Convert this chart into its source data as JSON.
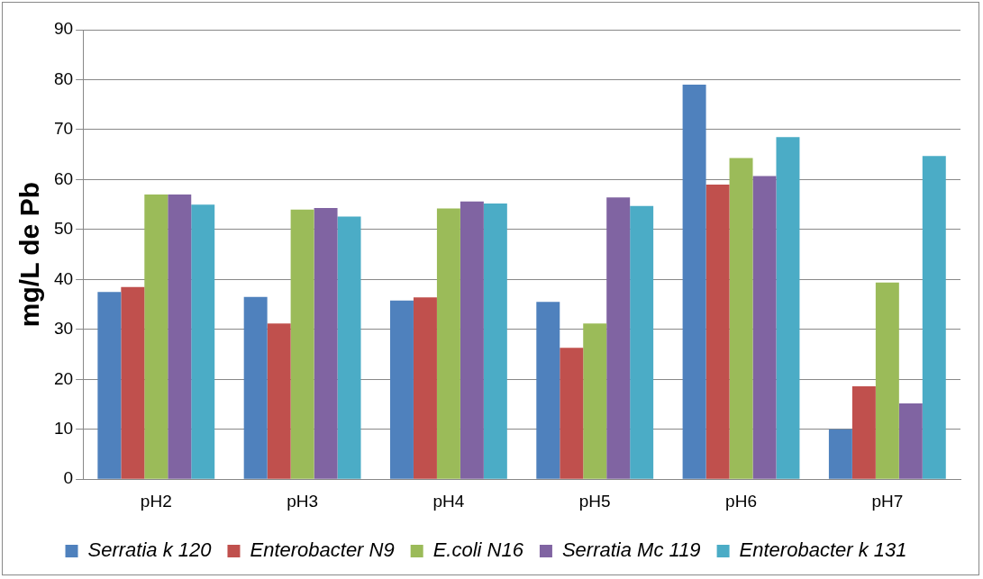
{
  "chart_data": {
    "type": "bar",
    "ylabel": "mg/L de Pb",
    "categories": [
      "pH2",
      "pH3",
      "pH4",
      "pH5",
      "pH6",
      "pH7"
    ],
    "series": [
      {
        "name": "Serratia k 120",
        "color": "#4f81bd",
        "values": [
          37.5,
          36.5,
          35.8,
          35.5,
          79,
          10
        ]
      },
      {
        "name": "Enterobacter N9",
        "color": "#c0504d",
        "values": [
          38.5,
          31.2,
          36.4,
          26.3,
          59,
          18.6
        ]
      },
      {
        "name": "E.coli N16",
        "color": "#9bbb59",
        "values": [
          57,
          54,
          54.2,
          31.2,
          64.3,
          39.4
        ]
      },
      {
        "name": "Serratia Mc 119",
        "color": "#8064a2",
        "values": [
          57,
          54.3,
          55.6,
          56.4,
          60.7,
          15.2
        ]
      },
      {
        "name": "Enterobacter k 131",
        "color": "#4bacc6",
        "values": [
          55,
          52.6,
          55.2,
          54.7,
          68.5,
          64.7
        ]
      }
    ],
    "ylim": [
      0,
      90
    ],
    "yticks": [
      0,
      10,
      20,
      30,
      40,
      50,
      60,
      70,
      80,
      90
    ],
    "grid": "y",
    "legend": "bottom"
  }
}
